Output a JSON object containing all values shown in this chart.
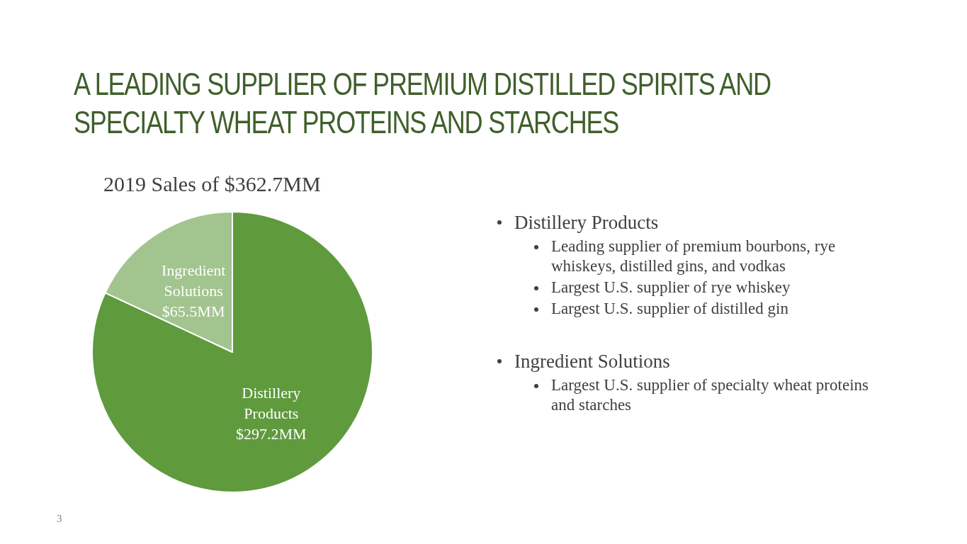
{
  "chart_data": {
    "type": "pie",
    "title": "A LEADING SUPPLIER OF PREMIUM DISTILLED SPIRITS AND SPECIALTY WHEAT PROTEINS AND STARCHES",
    "subtitle": "2019 Sales of $362.7MM",
    "categories": [
      "Distillery Products",
      "Ingredient Solutions"
    ],
    "values": [
      297.2,
      65.5
    ],
    "value_labels": [
      "$297.2MM",
      "$65.5MM"
    ],
    "colors": [
      "#5f9a3d",
      "#a2c48e"
    ],
    "annotations": [
      "Distillery Products",
      "Leading supplier of premium bourbons, rye whiskeys, distilled gins, and vodkas",
      "Largest U.S. supplier of rye whiskey",
      "Largest U.S. supplier of distilled gin",
      "Ingredient Solutions",
      "Largest U.S. supplier of specialty wheat proteins and starches",
      "3"
    ]
  }
}
